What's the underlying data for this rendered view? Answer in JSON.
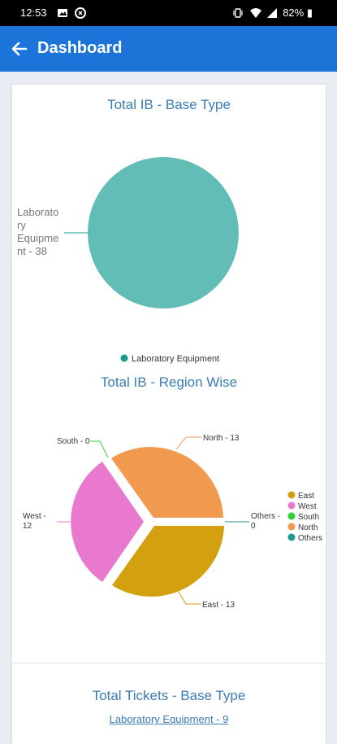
{
  "status_bar": {
    "time": "12:53",
    "battery": "82%"
  },
  "app_bar": {
    "title": "Dashboard"
  },
  "chart_data": [
    {
      "type": "pie",
      "title": "Total IB - Base Type",
      "categories": [
        "Laboratory Equipment"
      ],
      "values": [
        38
      ],
      "slice_labels": [
        "Laboratory Equipment - 38"
      ],
      "slice_label_lines": [
        "Laborato",
        "ry",
        "Equipme",
        "nt - 38"
      ],
      "legend": [
        "Laboratory Equipment"
      ],
      "colors": [
        "#63bdb7"
      ],
      "legend_position": "bottom"
    },
    {
      "type": "pie",
      "title": "Total IB - Region Wise",
      "categories": [
        "East",
        "West",
        "South",
        "North",
        "Others"
      ],
      "values": [
        13,
        12,
        0,
        13,
        0
      ],
      "slice_labels": [
        "East - 13",
        "West - 12",
        "South - 0",
        "North - 13",
        "Others - 0"
      ],
      "label_lines": {
        "west": [
          "West -",
          "12"
        ],
        "others": [
          "Others -",
          "0"
        ]
      },
      "legend": [
        "East",
        "West",
        "South",
        "North",
        "Others"
      ],
      "colors": [
        "#d3a010",
        "#e879cf",
        "#2ed13a",
        "#f0994f",
        "#1c9a8f"
      ],
      "legend_position": "right"
    }
  ],
  "tickets": {
    "title": "Total Tickets - Base Type",
    "link": "Laboratory Equipment - 9"
  }
}
